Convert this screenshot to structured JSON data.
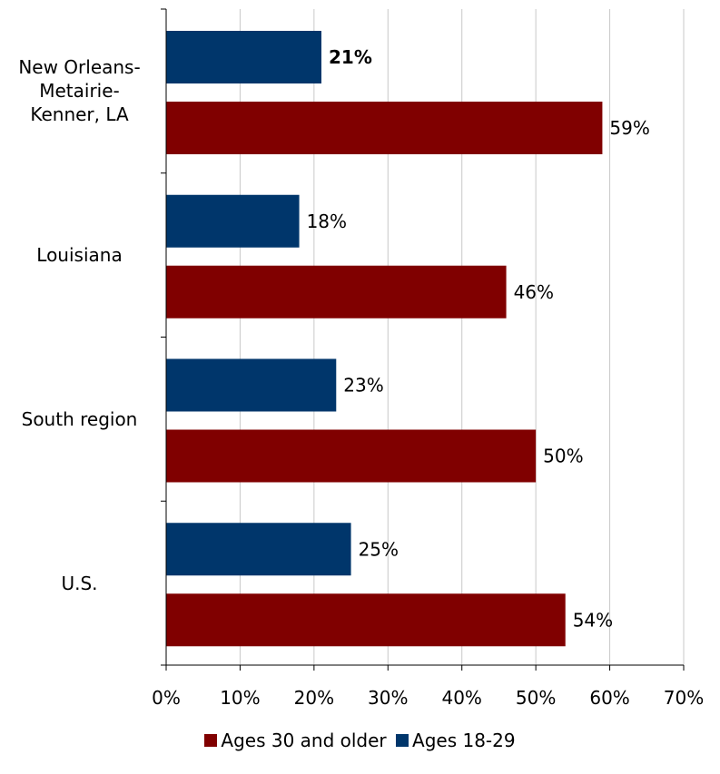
{
  "chart_data": {
    "type": "bar",
    "orientation": "horizontal",
    "categories": [
      "New Orleans-\nMetairie-\nKenner, LA",
      "Louisiana",
      "South region",
      "U.S."
    ],
    "series": [
      {
        "name": "Ages 18-29",
        "color": "#00366B",
        "values": [
          21,
          18,
          23,
          25
        ],
        "labels": [
          "21%",
          "18%",
          "23%",
          "25%"
        ],
        "bold_label_index": 0
      },
      {
        "name": "Ages 30 and older",
        "color": "#800000",
        "values": [
          59,
          46,
          50,
          54
        ],
        "labels": [
          "59%",
          "46%",
          "50%",
          "54%"
        ]
      }
    ],
    "x_ticks": [
      "0%",
      "10%",
      "20%",
      "30%",
      "40%",
      "50%",
      "60%",
      "70%"
    ],
    "xlim": [
      0,
      70
    ],
    "grid": true,
    "legend": {
      "position": "bottom",
      "items": [
        {
          "name": "Ages 30 and older",
          "color": "#800000"
        },
        {
          "name": "Ages 18-29",
          "color": "#00366B"
        }
      ]
    }
  }
}
